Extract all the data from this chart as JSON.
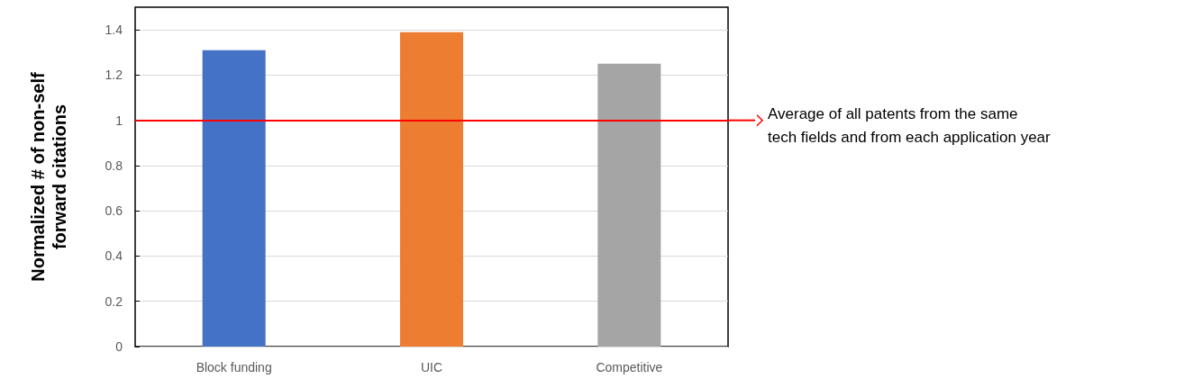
{
  "chart_data": {
    "type": "bar",
    "ylabel": "Normalized # of non-self\nforward citations",
    "categories": [
      "Block funding",
      "UIC",
      "Competitive"
    ],
    "values": [
      1.31,
      1.39,
      1.25
    ],
    "colors": [
      "#4472c4",
      "#ed7d31",
      "#a5a5a5"
    ],
    "ylim": [
      0,
      1.5
    ],
    "yticks": [
      0,
      0.2,
      0.4,
      0.6,
      0.8,
      1,
      1.2,
      1.4
    ],
    "grid": "y",
    "ref_lines": [
      {
        "axis": "y",
        "value": 1,
        "label": "Average of all patents from the same\ntech fields and from each application year",
        "color": "#ff0000"
      }
    ]
  }
}
